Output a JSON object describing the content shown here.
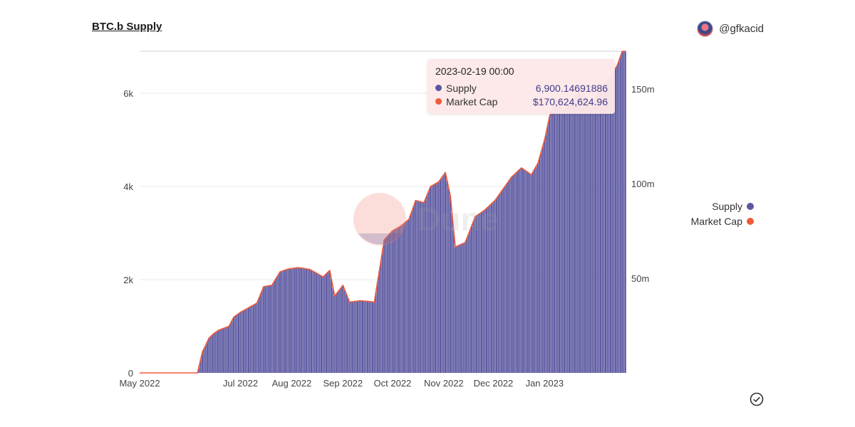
{
  "header": {
    "title": "BTC.b Supply",
    "author": "@gfkacid"
  },
  "colors": {
    "supply": "#5a56a0",
    "market_cap": "#ef5b3a",
    "grid": "#e8e8e8"
  },
  "watermark": "Dune",
  "tooltip": {
    "date": "2023-02-19 00:00",
    "rows": [
      {
        "label": "Supply",
        "value": "6,900.14691886"
      },
      {
        "label": "Market Cap",
        "value": "$170,624,624.96"
      }
    ]
  },
  "legend": [
    {
      "label": "Supply"
    },
    {
      "label": "Market Cap"
    }
  ],
  "chart_data": {
    "type": "bar",
    "title": "BTC.b Supply",
    "x_range": [
      "2022-05-01",
      "2023-02-19"
    ],
    "x_ticks": [
      "May 2022",
      "Jul 2022",
      "Aug 2022",
      "Sep 2022",
      "Oct 2022",
      "Nov 2022",
      "Dec 2022",
      "Jan 2023"
    ],
    "ylim_left": [
      0,
      6900
    ],
    "yticks_left": [
      "0",
      "2k",
      "4k",
      "6k"
    ],
    "ylim_right": [
      0,
      170000000
    ],
    "yticks_right": [
      "50m",
      "100m",
      "150m"
    ],
    "series": [
      {
        "name": "Supply",
        "axis": "left",
        "points": [
          [
            "2022-05-01",
            0
          ],
          [
            "2022-06-05",
            0
          ],
          [
            "2022-06-08",
            450
          ],
          [
            "2022-06-12",
            750
          ],
          [
            "2022-06-15",
            850
          ],
          [
            "2022-06-18",
            920
          ],
          [
            "2022-06-24",
            1000
          ],
          [
            "2022-06-27",
            1200
          ],
          [
            "2022-07-01",
            1300
          ],
          [
            "2022-07-06",
            1400
          ],
          [
            "2022-07-11",
            1500
          ],
          [
            "2022-07-15",
            1850
          ],
          [
            "2022-07-20",
            1880
          ],
          [
            "2022-07-25",
            2170
          ],
          [
            "2022-07-30",
            2230
          ],
          [
            "2022-08-05",
            2260
          ],
          [
            "2022-08-12",
            2220
          ],
          [
            "2022-08-20",
            2060
          ],
          [
            "2022-08-24",
            2200
          ],
          [
            "2022-08-27",
            1650
          ],
          [
            "2022-09-01",
            1880
          ],
          [
            "2022-09-05",
            1520
          ],
          [
            "2022-09-12",
            1550
          ],
          [
            "2022-09-20",
            1520
          ],
          [
            "2022-09-26",
            2850
          ],
          [
            "2022-10-01",
            3050
          ],
          [
            "2022-10-06",
            3150
          ],
          [
            "2022-10-11",
            3300
          ],
          [
            "2022-10-15",
            3700
          ],
          [
            "2022-10-20",
            3650
          ],
          [
            "2022-10-24",
            4000
          ],
          [
            "2022-10-29",
            4100
          ],
          [
            "2022-11-02",
            4300
          ],
          [
            "2022-11-05",
            3800
          ],
          [
            "2022-11-08",
            2700
          ],
          [
            "2022-11-14",
            2800
          ],
          [
            "2022-11-20",
            3350
          ],
          [
            "2022-11-26",
            3500
          ],
          [
            "2022-12-02",
            3700
          ],
          [
            "2022-12-06",
            3900
          ],
          [
            "2022-12-12",
            4200
          ],
          [
            "2022-12-18",
            4400
          ],
          [
            "2022-12-24",
            4250
          ],
          [
            "2022-12-28",
            4500
          ],
          [
            "2023-01-01",
            5000
          ],
          [
            "2023-01-04",
            5500
          ],
          [
            "2023-01-08",
            5900
          ],
          [
            "2023-01-12",
            5600
          ],
          [
            "2023-01-17",
            5800
          ],
          [
            "2023-01-23",
            6100
          ],
          [
            "2023-01-29",
            5700
          ],
          [
            "2023-02-04",
            6100
          ],
          [
            "2023-02-09",
            6300
          ],
          [
            "2023-02-14",
            6600
          ],
          [
            "2023-02-17",
            6900
          ],
          [
            "2023-02-19",
            6900.14691886
          ]
        ]
      },
      {
        "name": "Market Cap",
        "axis": "right",
        "note": "Drawn as line hugging the top of the supply bars",
        "last_value": 170624624.96
      }
    ]
  }
}
